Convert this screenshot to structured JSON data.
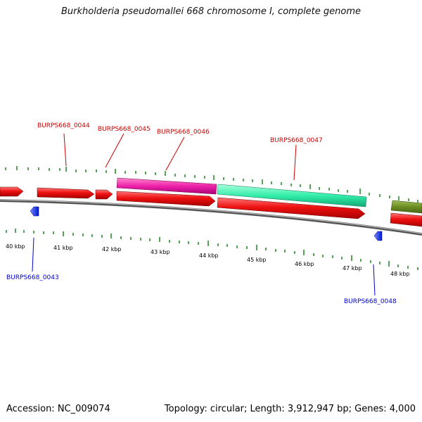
{
  "title": "Burkholderia pseudomallei 668 chromosome I, complete genome",
  "footer": {
    "accession": "Accession: NC_009074",
    "summary": "Topology: circular; Length: 3,912,947 bp; Genes: 4,000"
  },
  "colors": {
    "backbone": "#777777",
    "tick": "#2e8b2e",
    "gene_red": "#ee1111",
    "gene_magenta": "#ee22aa",
    "gene_teal": "#33eeaa",
    "gene_olive": "#6b8e23",
    "gene_blue": "#1e3cff",
    "label_red": "#cc0000",
    "label_blue": "#0000cc"
  },
  "scale": {
    "unit": "kbp",
    "labels": [
      "40 kbp",
      "41 kbp",
      "42 kbp",
      "43 kbp",
      "44 kbp",
      "45 kbp",
      "46 kbp",
      "47 kbp",
      "48 kbp"
    ]
  },
  "gene_labels": {
    "g0043": "BURPS668_0043",
    "g0044": "BURPS668_0044",
    "g0045": "BURPS668_0045",
    "g0046": "BURPS668_0046",
    "g0047": "BURPS668_0047",
    "g0048": "BURPS668_0048"
  }
}
